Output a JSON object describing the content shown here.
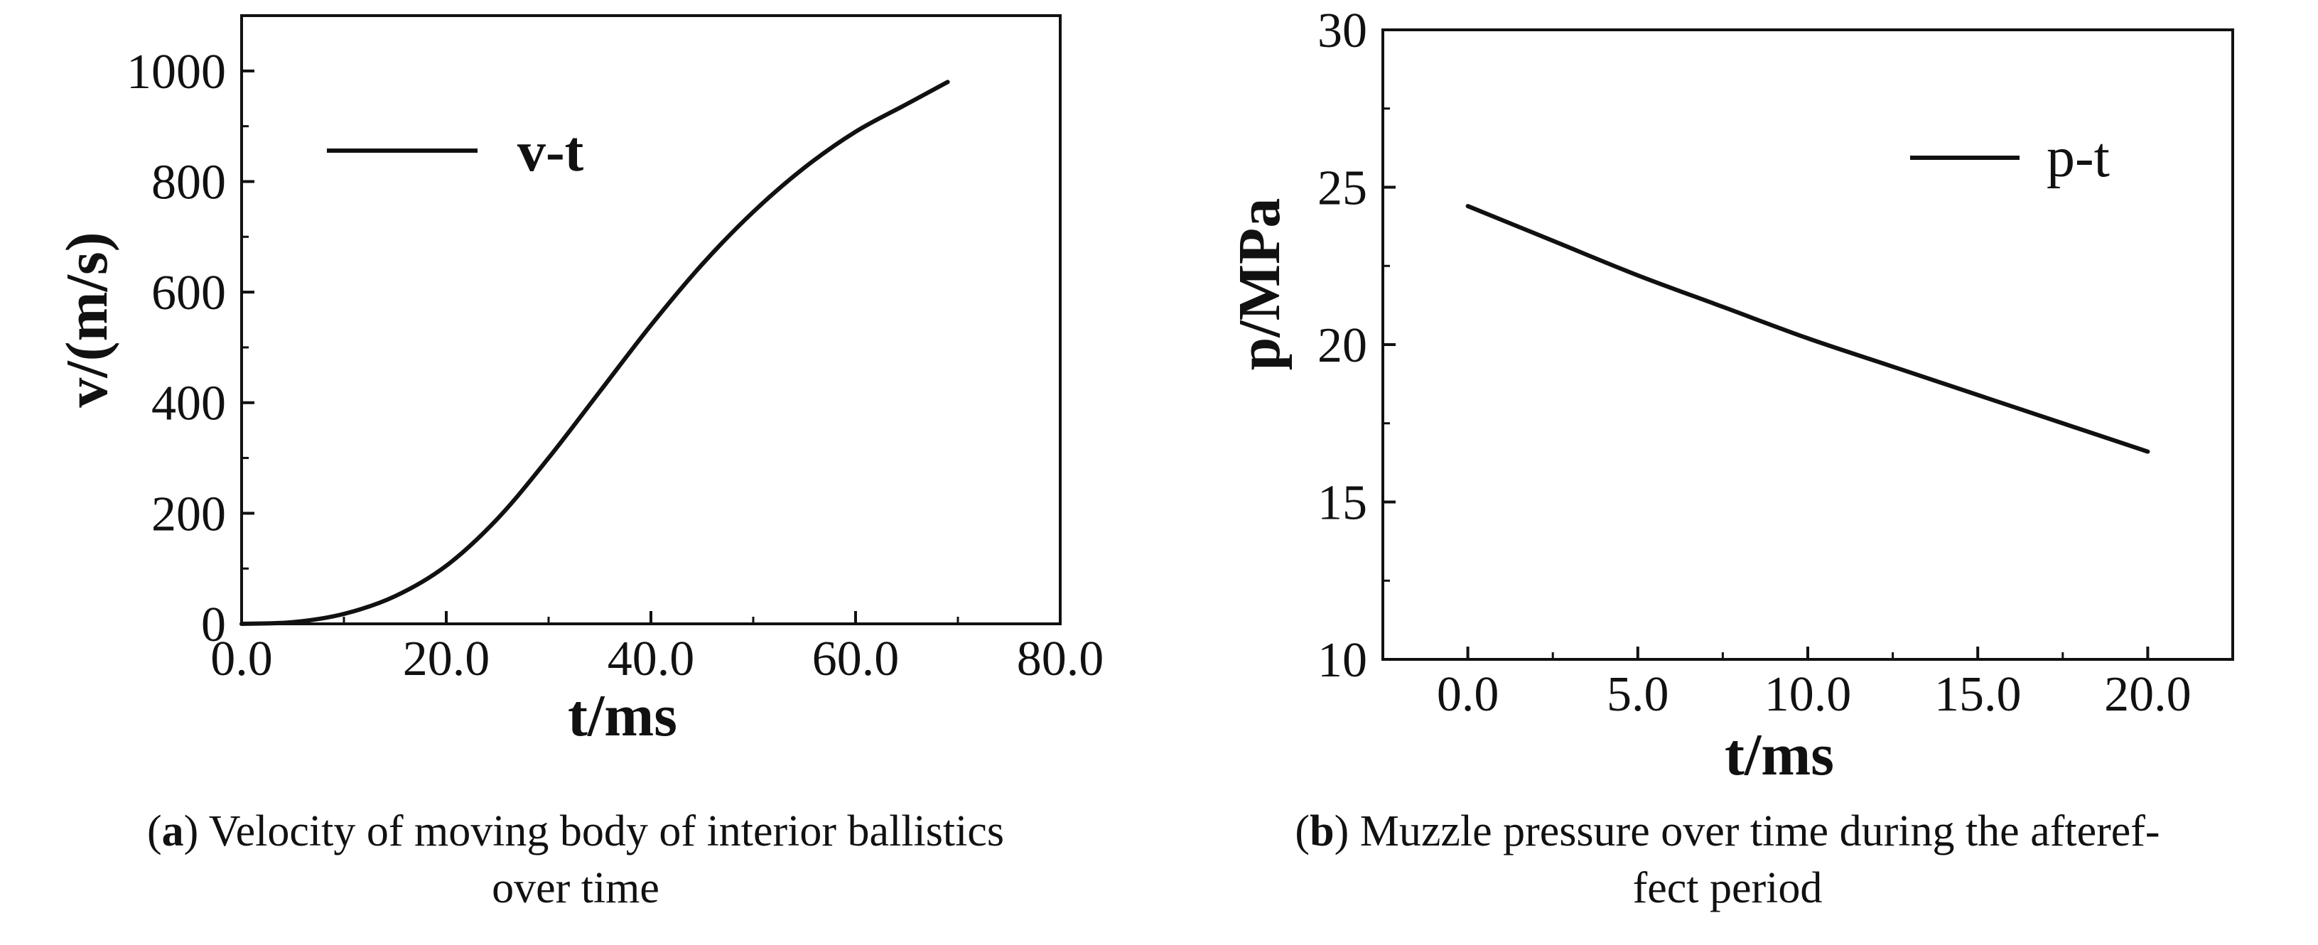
{
  "chart_data": [
    {
      "type": "line",
      "xlabel": "t/ms",
      "ylabel": "v/(m/s)",
      "xlim": [
        0,
        80
      ],
      "ylim": [
        0,
        1100
      ],
      "xticks": [
        0,
        20,
        40,
        60,
        80
      ],
      "xtick_labels": [
        "0.0",
        "20.0",
        "40.0",
        "60.0",
        "80.0"
      ],
      "yticks": [
        0,
        200,
        400,
        600,
        800,
        1000
      ],
      "ytick_labels": [
        "0",
        "200",
        "400",
        "600",
        "800",
        "1000"
      ],
      "legend": "top-left",
      "grid": false,
      "series": [
        {
          "name": "v-t",
          "x": [
            0,
            5,
            10,
            15,
            20,
            25,
            30,
            35,
            40,
            45,
            50,
            55,
            60,
            65,
            69
          ],
          "y": [
            0,
            3,
            18,
            50,
            105,
            190,
            300,
            420,
            540,
            650,
            745,
            825,
            890,
            940,
            980
          ]
        }
      ]
    },
    {
      "type": "line",
      "xlabel": "t/ms",
      "ylabel": "p/MPa",
      "xlim": [
        -2.5,
        22.5
      ],
      "ylim": [
        10,
        30
      ],
      "xticks": [
        0,
        5,
        10,
        15,
        20
      ],
      "xtick_labels": [
        "0.0",
        "5.0",
        "10.0",
        "15.0",
        "20.0"
      ],
      "yticks": [
        10,
        15,
        20,
        25,
        30
      ],
      "ytick_labels": [
        "10",
        "15",
        "20",
        "25",
        "30"
      ],
      "legend": "top-right",
      "grid": false,
      "series": [
        {
          "name": "p-t",
          "x": [
            0,
            2.5,
            5,
            7.5,
            10,
            12.5,
            15,
            17.5,
            20
          ],
          "y": [
            24.4,
            23.3,
            22.2,
            21.2,
            20.2,
            19.3,
            18.4,
            17.5,
            16.6
          ]
        }
      ]
    }
  ],
  "captions": [
    {
      "label": "a",
      "text": "Velocity of moving body of interior ballistics over time"
    },
    {
      "label": "b",
      "text": "Muzzle pressure over time during the afteref-fect period"
    }
  ],
  "caption_lines": {
    "a1": "Velocity of moving body of interior ballistics",
    "a2": "over time",
    "b1": "Muzzle pressure over time during the afteref-",
    "b2": "fect period"
  }
}
